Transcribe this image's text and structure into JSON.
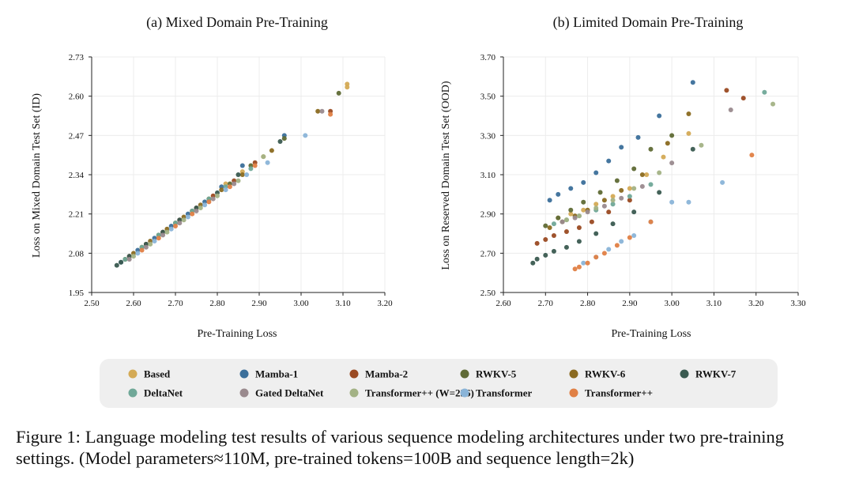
{
  "figure": {
    "caption_label": "Figure 1:",
    "caption_text": "Language modeling test results of various sequence modeling architectures under two pre-training settings. (Model parameters≈110M, pre-trained tokens=100B and sequence length=2k)"
  },
  "legend": [
    {
      "name": "Based",
      "color": "#d4aa55"
    },
    {
      "name": "Mamba-1",
      "color": "#3b6f9a"
    },
    {
      "name": "Mamba-2",
      "color": "#9a4a22"
    },
    {
      "name": "RWKV-5",
      "color": "#5f6a35"
    },
    {
      "name": "RWKV-6",
      "color": "#8a6a20"
    },
    {
      "name": "RWKV-7",
      "color": "#3a5a50"
    },
    {
      "name": "DeltaNet",
      "color": "#70a898"
    },
    {
      "name": "Gated DeltaNet",
      "color": "#9a8a8e"
    },
    {
      "name": "Transformer++ (W=256)",
      "color": "#a3b285"
    },
    {
      "name": "Transformer",
      "color": "#8ab4d8"
    },
    {
      "name": "Transformer++",
      "color": "#e08045"
    }
  ],
  "chart_data": [
    {
      "type": "scatter",
      "title": "(a) Mixed Domain Pre-Training",
      "xlabel": "Pre-Training Loss",
      "ylabel": "Loss on Mixed Domain Test Set (ID)",
      "xlim": [
        2.5,
        3.2
      ],
      "ylim": [
        1.95,
        2.73
      ],
      "xticks": [
        "2.50",
        "2.60",
        "2.70",
        "2.80",
        "2.90",
        "3.00",
        "3.10",
        "3.20"
      ],
      "yticks": [
        "1.95",
        "2.08",
        "2.21",
        "2.34",
        "2.47",
        "2.60",
        "2.73"
      ],
      "grid": true,
      "series": [
        {
          "name": "Based",
          "points": [
            [
              2.58,
              2.06
            ],
            [
              2.62,
              2.1
            ],
            [
              2.66,
              2.14
            ],
            [
              2.7,
              2.18
            ],
            [
              2.74,
              2.22
            ],
            [
              2.78,
              2.26
            ],
            [
              2.82,
              2.31
            ],
            [
              2.86,
              2.35
            ],
            [
              2.91,
              2.4
            ],
            [
              3.11,
              2.64
            ],
            [
              3.11,
              2.63
            ]
          ]
        },
        {
          "name": "Mamba-1",
          "points": [
            [
              2.57,
              2.05
            ],
            [
              2.61,
              2.09
            ],
            [
              2.65,
              2.13
            ],
            [
              2.69,
              2.17
            ],
            [
              2.73,
              2.21
            ],
            [
              2.77,
              2.25
            ],
            [
              2.81,
              2.3
            ],
            [
              2.86,
              2.37
            ],
            [
              2.96,
              2.47
            ]
          ]
        },
        {
          "name": "Mamba-2",
          "points": [
            [
              2.59,
              2.07
            ],
            [
              2.63,
              2.11
            ],
            [
              2.67,
              2.15
            ],
            [
              2.71,
              2.19
            ],
            [
              2.75,
              2.23
            ],
            [
              2.79,
              2.27
            ],
            [
              2.84,
              2.32
            ],
            [
              2.89,
              2.38
            ],
            [
              3.07,
              2.55
            ]
          ]
        },
        {
          "name": "RWKV-5",
          "points": [
            [
              2.58,
              2.06
            ],
            [
              2.62,
              2.1
            ],
            [
              2.66,
              2.14
            ],
            [
              2.7,
              2.18
            ],
            [
              2.74,
              2.22
            ],
            [
              2.78,
              2.26
            ],
            [
              2.83,
              2.31
            ],
            [
              2.88,
              2.37
            ],
            [
              2.96,
              2.46
            ],
            [
              3.09,
              2.61
            ]
          ]
        },
        {
          "name": "RWKV-6",
          "points": [
            [
              2.6,
              2.08
            ],
            [
              2.64,
              2.12
            ],
            [
              2.68,
              2.16
            ],
            [
              2.72,
              2.2
            ],
            [
              2.76,
              2.24
            ],
            [
              2.81,
              2.29
            ],
            [
              2.86,
              2.34
            ],
            [
              2.93,
              2.42
            ],
            [
              3.04,
              2.55
            ]
          ]
        },
        {
          "name": "RWKV-7",
          "points": [
            [
              2.56,
              2.04
            ],
            [
              2.57,
              2.05
            ],
            [
              2.59,
              2.07
            ],
            [
              2.63,
              2.11
            ],
            [
              2.67,
              2.15
            ],
            [
              2.71,
              2.19
            ],
            [
              2.75,
              2.23
            ],
            [
              2.8,
              2.28
            ],
            [
              2.85,
              2.34
            ],
            [
              2.95,
              2.45
            ]
          ]
        },
        {
          "name": "DeltaNet",
          "points": [
            [
              2.58,
              2.06
            ],
            [
              2.62,
              2.1
            ],
            [
              2.66,
              2.14
            ],
            [
              2.7,
              2.18
            ],
            [
              2.74,
              2.22
            ],
            [
              2.78,
              2.26
            ],
            [
              2.82,
              2.3
            ],
            [
              2.88,
              2.36
            ]
          ]
        },
        {
          "name": "Gated DeltaNet",
          "points": [
            [
              2.59,
              2.06
            ],
            [
              2.63,
              2.1
            ],
            [
              2.67,
              2.14
            ],
            [
              2.71,
              2.18
            ],
            [
              2.75,
              2.22
            ],
            [
              2.79,
              2.26
            ],
            [
              2.84,
              2.31
            ],
            [
              3.05,
              2.55
            ]
          ]
        },
        {
          "name": "Transformer++ (W=256)",
          "points": [
            [
              2.6,
              2.07
            ],
            [
              2.64,
              2.11
            ],
            [
              2.68,
              2.15
            ],
            [
              2.72,
              2.19
            ],
            [
              2.76,
              2.23
            ],
            [
              2.8,
              2.27
            ],
            [
              2.85,
              2.32
            ],
            [
              2.91,
              2.4
            ]
          ]
        },
        {
          "name": "Transformer",
          "points": [
            [
              2.61,
              2.08
            ],
            [
              2.65,
              2.12
            ],
            [
              2.69,
              2.16
            ],
            [
              2.73,
              2.2
            ],
            [
              2.77,
              2.24
            ],
            [
              2.82,
              2.29
            ],
            [
              2.87,
              2.34
            ],
            [
              2.92,
              2.38
            ],
            [
              3.01,
              2.47
            ]
          ]
        },
        {
          "name": "Transformer++",
          "points": [
            [
              2.62,
              2.09
            ],
            [
              2.66,
              2.13
            ],
            [
              2.7,
              2.17
            ],
            [
              2.74,
              2.21
            ],
            [
              2.78,
              2.25
            ],
            [
              2.83,
              2.3
            ],
            [
              2.89,
              2.37
            ],
            [
              3.07,
              2.54
            ]
          ]
        }
      ]
    },
    {
      "type": "scatter",
      "title": "(b) Limited Domain Pre-Training",
      "xlabel": "Pre-Training Loss",
      "ylabel": "Loss on Reserved Domain Test Set (OOD)",
      "xlim": [
        2.6,
        3.3
      ],
      "ylim": [
        2.5,
        3.7
      ],
      "xticks": [
        "2.60",
        "2.70",
        "2.80",
        "2.90",
        "3.00",
        "3.10",
        "3.20",
        "3.30"
      ],
      "yticks": [
        "2.50",
        "2.70",
        "2.90",
        "3.10",
        "3.30",
        "3.50",
        "3.70"
      ],
      "grid": true,
      "series": [
        {
          "name": "Based",
          "points": [
            [
              2.73,
              2.88
            ],
            [
              2.76,
              2.9
            ],
            [
              2.79,
              2.92
            ],
            [
              2.82,
              2.95
            ],
            [
              2.86,
              2.99
            ],
            [
              2.9,
              3.03
            ],
            [
              2.94,
              3.1
            ],
            [
              2.98,
              3.19
            ],
            [
              3.04,
              3.31
            ]
          ]
        },
        {
          "name": "Mamba-1",
          "points": [
            [
              2.71,
              2.97
            ],
            [
              2.73,
              3.0
            ],
            [
              2.76,
              3.03
            ],
            [
              2.79,
              3.06
            ],
            [
              2.82,
              3.11
            ],
            [
              2.85,
              3.17
            ],
            [
              2.88,
              3.24
            ],
            [
              2.92,
              3.29
            ],
            [
              2.97,
              3.4
            ],
            [
              3.05,
              3.57
            ]
          ]
        },
        {
          "name": "Mamba-2",
          "points": [
            [
              2.68,
              2.75
            ],
            [
              2.7,
              2.77
            ],
            [
              2.72,
              2.79
            ],
            [
              2.75,
              2.81
            ],
            [
              2.78,
              2.83
            ],
            [
              2.81,
              2.86
            ],
            [
              2.85,
              2.91
            ],
            [
              2.9,
              2.97
            ],
            [
              3.13,
              3.53
            ],
            [
              3.17,
              3.49
            ]
          ]
        },
        {
          "name": "RWKV-5",
          "points": [
            [
              2.7,
              2.84
            ],
            [
              2.73,
              2.88
            ],
            [
              2.76,
              2.92
            ],
            [
              2.79,
              2.96
            ],
            [
              2.83,
              3.01
            ],
            [
              2.87,
              3.07
            ],
            [
              2.91,
              3.13
            ],
            [
              2.95,
              3.23
            ],
            [
              3.0,
              3.3
            ]
          ]
        },
        {
          "name": "RWKV-6",
          "points": [
            [
              2.71,
              2.83
            ],
            [
              2.74,
              2.86
            ],
            [
              2.77,
              2.89
            ],
            [
              2.8,
              2.92
            ],
            [
              2.84,
              2.97
            ],
            [
              2.88,
              3.02
            ],
            [
              2.93,
              3.1
            ],
            [
              2.99,
              3.26
            ],
            [
              3.04,
              3.41
            ]
          ]
        },
        {
          "name": "RWKV-7",
          "points": [
            [
              2.67,
              2.65
            ],
            [
              2.68,
              2.67
            ],
            [
              2.7,
              2.69
            ],
            [
              2.72,
              2.71
            ],
            [
              2.75,
              2.73
            ],
            [
              2.78,
              2.76
            ],
            [
              2.82,
              2.8
            ],
            [
              2.86,
              2.85
            ],
            [
              2.91,
              2.91
            ],
            [
              2.97,
              3.01
            ],
            [
              3.05,
              3.23
            ]
          ]
        },
        {
          "name": "DeltaNet",
          "points": [
            [
              2.72,
              2.85
            ],
            [
              2.75,
              2.87
            ],
            [
              2.78,
              2.89
            ],
            [
              2.82,
              2.92
            ],
            [
              2.86,
              2.95
            ],
            [
              2.9,
              2.99
            ],
            [
              2.95,
              3.05
            ],
            [
              3.22,
              3.52
            ]
          ]
        },
        {
          "name": "Gated DeltaNet",
          "points": [
            [
              2.74,
              2.86
            ],
            [
              2.77,
              2.88
            ],
            [
              2.8,
              2.91
            ],
            [
              2.84,
              2.94
            ],
            [
              2.88,
              2.98
            ],
            [
              2.93,
              3.04
            ],
            [
              3.0,
              3.16
            ],
            [
              3.14,
              3.43
            ]
          ]
        },
        {
          "name": "Transformer++ (W=256)",
          "points": [
            [
              2.75,
              2.87
            ],
            [
              2.78,
              2.89
            ],
            [
              2.82,
              2.93
            ],
            [
              2.86,
              2.97
            ],
            [
              2.91,
              3.03
            ],
            [
              2.97,
              3.11
            ],
            [
              3.07,
              3.25
            ],
            [
              3.24,
              3.46
            ]
          ]
        },
        {
          "name": "Transformer",
          "points": [
            [
              2.79,
              2.65
            ],
            [
              2.82,
              2.68
            ],
            [
              2.85,
              2.72
            ],
            [
              2.88,
              2.76
            ],
            [
              2.91,
              2.79
            ],
            [
              2.95,
              2.86
            ],
            [
              3.0,
              2.96
            ],
            [
              3.04,
              2.96
            ],
            [
              3.12,
              3.06
            ]
          ]
        },
        {
          "name": "Transformer++",
          "points": [
            [
              2.77,
              2.62
            ],
            [
              2.78,
              2.63
            ],
            [
              2.8,
              2.65
            ],
            [
              2.82,
              2.68
            ],
            [
              2.84,
              2.7
            ],
            [
              2.87,
              2.74
            ],
            [
              2.9,
              2.78
            ],
            [
              2.95,
              2.86
            ],
            [
              3.19,
              3.2
            ]
          ]
        }
      ]
    }
  ]
}
